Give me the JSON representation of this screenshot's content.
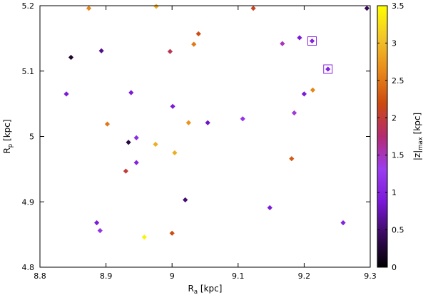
{
  "chart_data": {
    "type": "scatter",
    "xlabel": {
      "main": "R",
      "sub": "a",
      "unit": " [kpc]"
    },
    "ylabel": {
      "main": "R",
      "sub": "p",
      "unit": " [kpc]"
    },
    "xlim": [
      8.8,
      9.3
    ],
    "ylim": [
      4.8,
      5.2
    ],
    "x_ticks": [
      "8.8",
      "8.9",
      "9",
      "9.1",
      "9.2",
      "9.3"
    ],
    "y_ticks": [
      "4.8",
      "4.9",
      "5",
      "5.1",
      "5.2"
    ],
    "colorbar": {
      "label": {
        "pre": "|z|",
        "sub": "max",
        "unit": " [kpc]"
      },
      "range": [
        0,
        3.5
      ],
      "ticks": [
        "0",
        "0.5",
        "1",
        "1.5",
        "2",
        "2.5",
        "3",
        "3.5"
      ],
      "colormap": [
        "#000000",
        "#3a0a5e",
        "#7a18d8",
        "#9b3ef0",
        "#b42a72",
        "#cc4a10",
        "#e88a1a",
        "#f2c42a",
        "#ffff00"
      ]
    },
    "grid": false,
    "points": [
      {
        "x": 8.874,
        "y": 5.196,
        "z": 2.6
      },
      {
        "x": 8.976,
        "y": 5.199,
        "z": 2.9
      },
      {
        "x": 9.123,
        "y": 5.196,
        "z": 2.1
      },
      {
        "x": 9.295,
        "y": 5.196,
        "z": 0.4
      },
      {
        "x": 8.847,
        "y": 5.121,
        "z": 0.2
      },
      {
        "x": 8.893,
        "y": 5.131,
        "z": 0.6
      },
      {
        "x": 8.997,
        "y": 5.13,
        "z": 1.9
      },
      {
        "x": 9.033,
        "y": 5.141,
        "z": 2.5
      },
      {
        "x": 9.04,
        "y": 5.157,
        "z": 2.2
      },
      {
        "x": 9.167,
        "y": 5.142,
        "z": 1.5
      },
      {
        "x": 9.193,
        "y": 5.151,
        "z": 0.9
      },
      {
        "x": 9.212,
        "y": 5.146,
        "z": 1.0,
        "highlight": true
      },
      {
        "x": 9.236,
        "y": 5.103,
        "z": 1.0,
        "highlight": true
      },
      {
        "x": 8.84,
        "y": 5.065,
        "z": 0.9
      },
      {
        "x": 8.938,
        "y": 5.067,
        "z": 0.9
      },
      {
        "x": 9.001,
        "y": 5.046,
        "z": 0.9
      },
      {
        "x": 9.2,
        "y": 5.065,
        "z": 0.9
      },
      {
        "x": 9.213,
        "y": 5.071,
        "z": 2.6
      },
      {
        "x": 9.185,
        "y": 5.036,
        "z": 1.4
      },
      {
        "x": 9.107,
        "y": 5.027,
        "z": 1.2
      },
      {
        "x": 8.902,
        "y": 5.019,
        "z": 2.5
      },
      {
        "x": 9.025,
        "y": 5.021,
        "z": 2.7
      },
      {
        "x": 9.054,
        "y": 5.021,
        "z": 0.8
      },
      {
        "x": 8.946,
        "y": 4.998,
        "z": 1.1
      },
      {
        "x": 8.934,
        "y": 4.991,
        "z": 0.3
      },
      {
        "x": 8.975,
        "y": 4.988,
        "z": 2.9
      },
      {
        "x": 9.004,
        "y": 4.975,
        "z": 2.9
      },
      {
        "x": 9.181,
        "y": 4.966,
        "z": 2.3
      },
      {
        "x": 8.946,
        "y": 4.96,
        "z": 1.0
      },
      {
        "x": 8.93,
        "y": 4.947,
        "z": 2.0
      },
      {
        "x": 9.02,
        "y": 4.903,
        "z": 0.5
      },
      {
        "x": 9.148,
        "y": 4.891,
        "z": 0.9
      },
      {
        "x": 8.886,
        "y": 4.868,
        "z": 0.9
      },
      {
        "x": 8.891,
        "y": 4.856,
        "z": 1.2
      },
      {
        "x": 8.958,
        "y": 4.846,
        "z": 3.4
      },
      {
        "x": 9.0,
        "y": 4.852,
        "z": 2.2
      },
      {
        "x": 9.259,
        "y": 4.868,
        "z": 1.0
      }
    ]
  }
}
